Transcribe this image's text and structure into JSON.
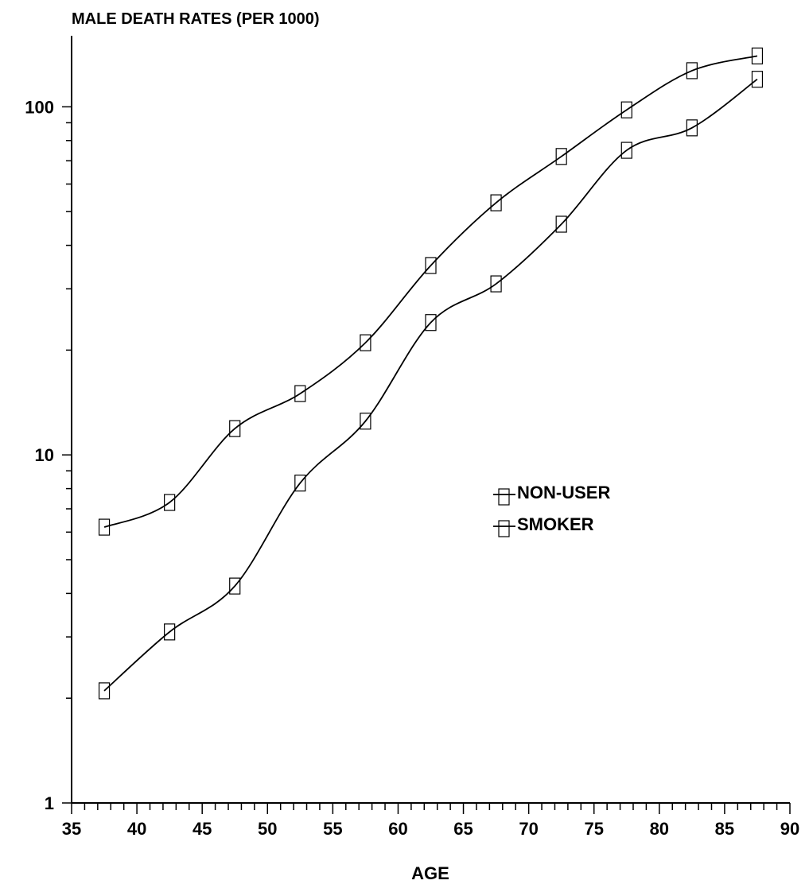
{
  "chart_data": {
    "type": "line",
    "title": "MALE DEATH RATES (PER 1000)",
    "subtitle": "",
    "xlabel": "AGE",
    "ylabel": "",
    "x_scale": "linear",
    "y_scale": "log",
    "xlim": [
      35,
      90
    ],
    "ylim": [
      1,
      160
    ],
    "x_ticks": [
      "35",
      "40",
      "45",
      "50",
      "55",
      "60",
      "65",
      "70",
      "75",
      "80",
      "85",
      "90"
    ],
    "y_ticks": [
      "1",
      "10",
      "100"
    ],
    "x_minor_tick_step": 1,
    "grid": false,
    "legend_position": "center-right",
    "marker": "hollow-rectangle",
    "series": [
      {
        "name": "NON-USER",
        "x": [
          37.5,
          42.5,
          47.5,
          52.5,
          57.5,
          62.5,
          67.5,
          72.5,
          77.5,
          82.5,
          87.5
        ],
        "values": [
          2.1,
          3.1,
          4.2,
          8.3,
          12.5,
          24,
          31,
          46,
          75,
          87,
          120
        ],
        "color": "#000000"
      },
      {
        "name": "SMOKER",
        "x": [
          37.5,
          42.5,
          47.5,
          52.5,
          57.5,
          62.5,
          67.5,
          72.5,
          77.5,
          82.5,
          87.5
        ],
        "values": [
          6.2,
          7.3,
          11.9,
          15,
          21,
          35,
          53,
          72,
          98,
          127,
          140
        ],
        "color": "#000000"
      }
    ]
  }
}
